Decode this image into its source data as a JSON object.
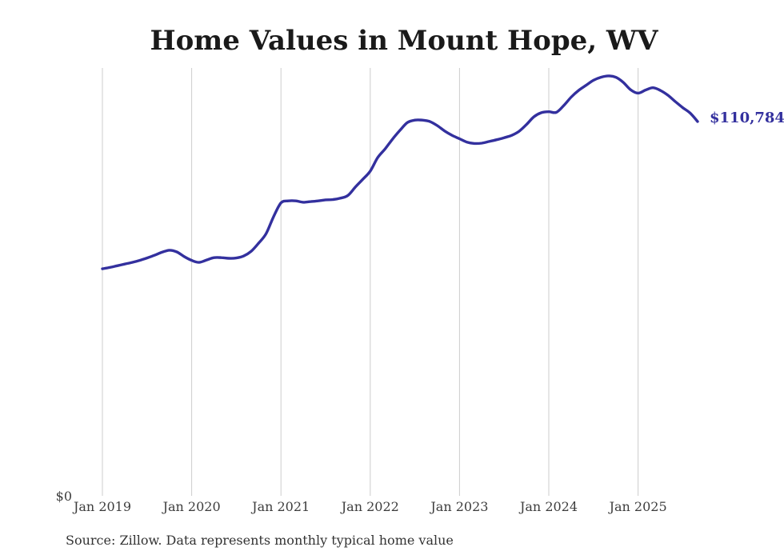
{
  "header": {
    "title": "Home Values in Mount Hope, WV"
  },
  "chart": {
    "y_zero_label": "$0",
    "end_value_label": "$110,784",
    "x_tick_labels": [
      "Jan 2019",
      "Jan 2020",
      "Jan 2021",
      "Jan 2022",
      "Jan 2023",
      "Jan 2024",
      "Jan 2025"
    ],
    "line_color": "#33309e",
    "grid_color": "#cccccc"
  },
  "footer": {
    "source_note": "Source: Zillow. Data represents monthly typical home value"
  },
  "chart_data": {
    "type": "line",
    "title": "Home Values in Mount Hope, WV",
    "unit": "USD",
    "frequency": "monthly",
    "x_start": "Jan 2019",
    "x_end": "Sep 2025",
    "x_tick_labels": [
      "Jan 2019",
      "Jan 2020",
      "Jan 2021",
      "Jan 2022",
      "Jan 2023",
      "Jan 2024",
      "Jan 2025"
    ],
    "ylim": [
      0,
      126500
    ],
    "grid": "vertical-only",
    "legend": "none",
    "last_value": 110784,
    "last_value_label": "$110,784",
    "series": [
      {
        "name": "Typical home value",
        "values": [
          67200,
          67600,
          68100,
          68600,
          69100,
          69700,
          70400,
          71200,
          72100,
          72700,
          72200,
          70800,
          69700,
          69100,
          69800,
          70500,
          70500,
          70300,
          70400,
          71000,
          72400,
          74800,
          77600,
          82600,
          86700,
          87300,
          87300,
          86900,
          87100,
          87300,
          87600,
          87700,
          88100,
          88900,
          91400,
          93700,
          96100,
          100100,
          102700,
          105600,
          108200,
          110500,
          111200,
          111200,
          110800,
          109600,
          108000,
          106700,
          105700,
          104700,
          104300,
          104400,
          104900,
          105400,
          106000,
          106700,
          107900,
          109900,
          112200,
          113400,
          113700,
          113500,
          115500,
          118000,
          120000,
          121500,
          123000,
          123900,
          124300,
          123900,
          122400,
          120200,
          119200,
          120100,
          120800,
          120000,
          118600,
          116700,
          114900,
          113300,
          110784
        ]
      }
    ]
  }
}
